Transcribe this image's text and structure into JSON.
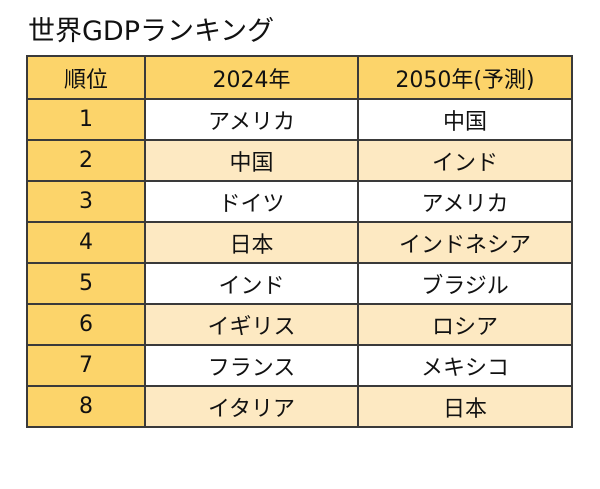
{
  "title": "世界GDPランキング",
  "table": {
    "headers": {
      "rank": "順位",
      "year_2024": "2024年",
      "year_2050": "2050年(予測)"
    },
    "rows": [
      {
        "rank": "1",
        "y2024": "アメリカ",
        "y2050": "中国"
      },
      {
        "rank": "2",
        "y2024": "中国",
        "y2050": "インド"
      },
      {
        "rank": "3",
        "y2024": "ドイツ",
        "y2050": "アメリカ"
      },
      {
        "rank": "4",
        "y2024": "日本",
        "y2050": "インドネシア"
      },
      {
        "rank": "5",
        "y2024": "インド",
        "y2050": "ブラジル"
      },
      {
        "rank": "6",
        "y2024": "イギリス",
        "y2050": "ロシア"
      },
      {
        "rank": "7",
        "y2024": "フランス",
        "y2050": "メキシコ"
      },
      {
        "rank": "8",
        "y2024": "イタリア",
        "y2050": "日本"
      }
    ]
  },
  "colors": {
    "header_fill": "#fcd46a",
    "rank_fill": "#fcd46a",
    "alt_row_fill": "#fde9c2",
    "border": "#3a3a3a"
  }
}
